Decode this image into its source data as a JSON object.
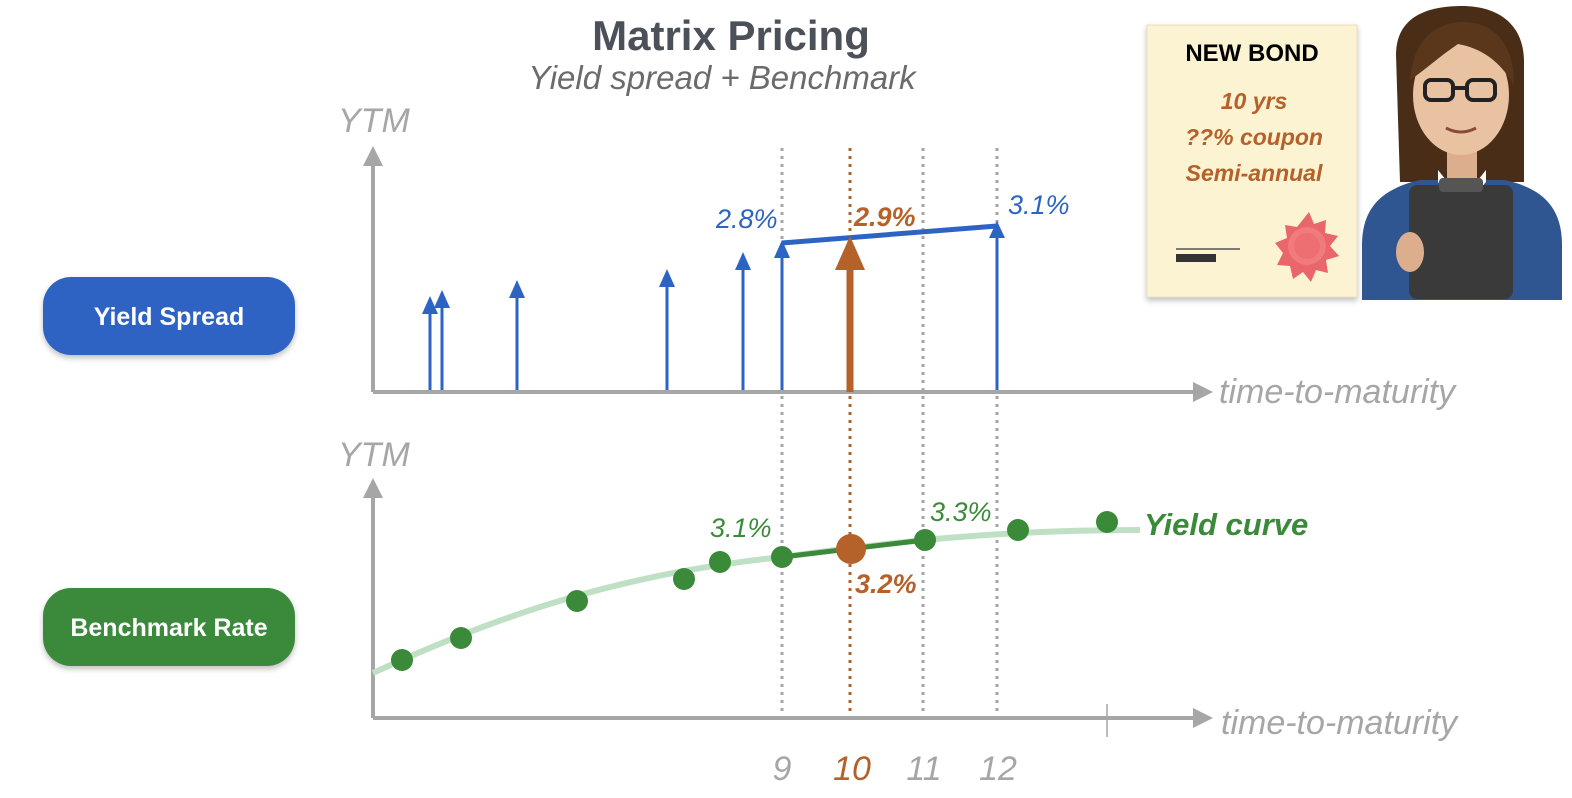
{
  "title": "Matrix Pricing",
  "subtitle": "Yield spread + Benchmark",
  "colors": {
    "blue": "#2d64c4",
    "green": "#3a8a3a",
    "light_green": "#bfe0c4",
    "orange": "#b4612a",
    "axis_gray": "#a6a6a6"
  },
  "pills": {
    "spread": "Yield Spread",
    "benchmark": "Benchmark Rate"
  },
  "bond_card": {
    "heading": "NEW BOND",
    "lines": [
      "10 yrs",
      "??% coupon",
      "Semi-annual"
    ],
    "icon": "seal-icon"
  },
  "person_icon": "analyst-with-clipboard-icon",
  "axes": {
    "y_label": "YTM",
    "x_label": "time-to-maturity",
    "ticks": [
      "9",
      "10",
      "11",
      "12"
    ]
  },
  "spread_labels": {
    "left": "2.8%",
    "mid": "2.9%",
    "right": "3.1%"
  },
  "benchmark_labels": {
    "left": "3.1%",
    "mid": "3.2%",
    "right": "3.3%",
    "curve": "Yield curve"
  }
}
